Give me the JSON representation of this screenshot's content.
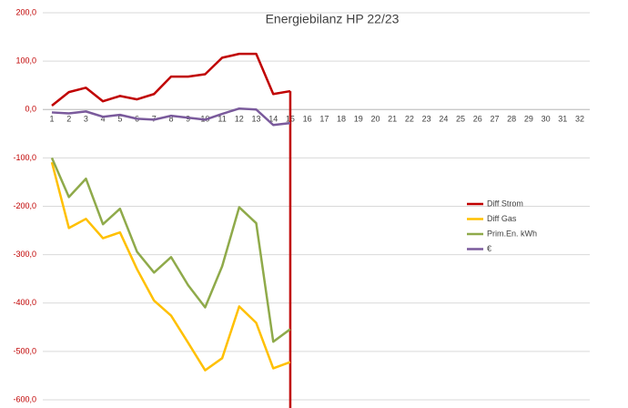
{
  "chart_data": {
    "type": "line",
    "title": "Energiebilanz HP 22/23",
    "categories": [
      "1",
      "2",
      "3",
      "4",
      "5",
      "6",
      "7",
      "8",
      "9",
      "10",
      "11",
      "12",
      "13",
      "14",
      "15",
      "16",
      "17",
      "18",
      "19",
      "20",
      "21",
      "22",
      "23",
      "24",
      "25",
      "26",
      "27",
      "28",
      "29",
      "30",
      "31",
      "32"
    ],
    "series": [
      {
        "name": "Diff Strom",
        "color": "#c00000",
        "values": [
          8,
          36,
          45,
          17,
          28,
          21,
          32,
          68,
          68,
          73,
          107,
          115,
          115,
          32,
          38,
          null,
          null,
          null,
          null,
          null,
          null,
          null,
          null,
          null,
          null,
          null,
          null,
          null,
          null,
          null,
          null,
          null
        ]
      },
      {
        "name": "Diff Gas",
        "color": "#ffc000",
        "values": [
          -109,
          -245,
          -226,
          -266,
          -254,
          -330,
          -395,
          -426,
          -482,
          -539,
          -514,
          -407,
          -441,
          -535,
          -522,
          null,
          null,
          null,
          null,
          null,
          null,
          null,
          null,
          null,
          null,
          null,
          null,
          null,
          null,
          null,
          null,
          null
        ]
      },
      {
        "name": "Prim.En. kWh",
        "color": "#8faa4a",
        "values": [
          -100,
          -181,
          -143,
          -237,
          -205,
          -294,
          -337,
          -305,
          -363,
          -409,
          -324,
          -202,
          -235,
          -480,
          -454,
          null,
          null,
          null,
          null,
          null,
          null,
          null,
          null,
          null,
          null,
          null,
          null,
          null,
          null,
          null,
          null,
          null
        ]
      },
      {
        "name": "€",
        "color": "#7a5a9c",
        "values": [
          -6,
          -8,
          -4,
          -15,
          -11,
          -19,
          -21,
          -13,
          -17,
          -21,
          -9,
          2,
          0,
          -32,
          -28,
          null,
          null,
          null,
          null,
          null,
          null,
          null,
          null,
          null,
          null,
          null,
          null,
          null,
          null,
          null,
          null,
          null
        ]
      }
    ],
    "ylim": [
      -600,
      200
    ],
    "yticks": [
      {
        "value": 200,
        "label": "200,0"
      },
      {
        "value": 100,
        "label": "100,0"
      },
      {
        "value": 0,
        "label": "0,0"
      },
      {
        "value": -100,
        "label": "-100,0"
      },
      {
        "value": -200,
        "label": "-200,0"
      },
      {
        "value": -300,
        "label": "-300,0"
      },
      {
        "value": -400,
        "label": "-400,0"
      },
      {
        "value": -500,
        "label": "-500,0"
      },
      {
        "value": -600,
        "label": "-600,0"
      }
    ],
    "grid": true,
    "legend": "right"
  }
}
